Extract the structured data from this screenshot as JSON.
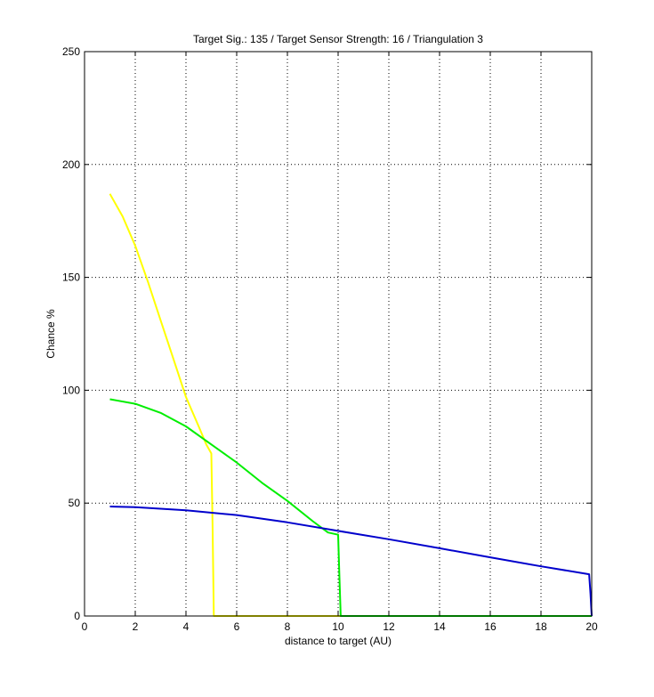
{
  "chart_data": {
    "type": "line",
    "title": "Target Sig.: 135 / Target Sensor Strength: 16 / Triangulation 3",
    "xlabel": "distance to target (AU)",
    "ylabel": "Chance %",
    "xlim": [
      0,
      20
    ],
    "ylim": [
      0,
      250
    ],
    "xticks": [
      0,
      2,
      4,
      6,
      8,
      10,
      12,
      14,
      16,
      18,
      20
    ],
    "yticks": [
      0,
      50,
      100,
      150,
      200,
      250
    ],
    "grid": true,
    "legend": "none",
    "series": [
      {
        "color": "#ffff00",
        "x": [
          1,
          1.5,
          2,
          2.5,
          3,
          3.5,
          4,
          4.5,
          4.8,
          5.0,
          5.05,
          5.1,
          5.15,
          6,
          8,
          10,
          12,
          14,
          16,
          18,
          20
        ],
        "y": [
          187,
          177,
          164,
          148,
          131,
          114,
          97,
          84,
          76,
          72,
          40,
          0,
          0,
          0,
          0,
          0,
          0,
          0,
          0,
          0,
          0
        ]
      },
      {
        "color": "#00ee00",
        "x": [
          1,
          2,
          3,
          4,
          5,
          6,
          7,
          8,
          9,
          9.6,
          10.0,
          10.05,
          10.1,
          10.2,
          12,
          14,
          16,
          18,
          20
        ],
        "y": [
          96,
          94,
          90,
          84,
          76,
          68,
          59,
          51,
          42,
          37,
          36,
          18,
          0,
          0,
          0,
          0,
          0,
          0,
          0
        ]
      },
      {
        "color": "#0000cc",
        "x": [
          1,
          2,
          4,
          6,
          8,
          10,
          12,
          14,
          16,
          18,
          19.9,
          19.95,
          20
        ],
        "y": [
          48.5,
          48.2,
          46.8,
          44.7,
          41.5,
          37.7,
          34,
          30,
          26,
          22,
          18.5,
          10,
          0
        ]
      }
    ]
  }
}
